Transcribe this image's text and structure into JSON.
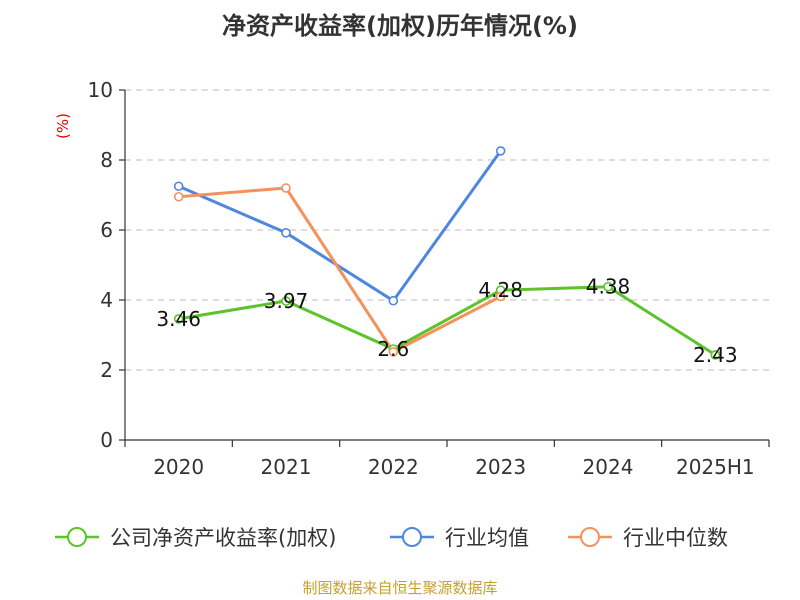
{
  "chart_data": {
    "type": "line",
    "title": "净资产收益率(加权)历年情况(%)",
    "ylabel": "(%)",
    "xlabel": "",
    "categories": [
      "2020",
      "2021",
      "2022",
      "2023",
      "2024",
      "2025H1"
    ],
    "ylim": [
      0,
      10
    ],
    "yticks": [
      0,
      2,
      4,
      6,
      8,
      10
    ],
    "grid": true,
    "legend_position": "bottom",
    "series": [
      {
        "name": "公司净资产收益率(加权)",
        "color": "#5cc42a",
        "values": [
          3.46,
          3.97,
          2.6,
          4.28,
          4.38,
          2.43
        ],
        "data_labels": [
          "3.46",
          "3.97",
          "2.6",
          "4.28",
          "4.38",
          "2.43"
        ]
      },
      {
        "name": "行业均值",
        "color": "#4f86e0",
        "values": [
          7.25,
          5.92,
          3.98,
          8.26,
          null,
          null
        ]
      },
      {
        "name": "行业中位数",
        "color": "#f5915a",
        "values": [
          6.95,
          7.2,
          2.52,
          4.1,
          null,
          null
        ]
      }
    ]
  },
  "footer": {
    "source": "制图数据来自恒生聚源数据库"
  }
}
